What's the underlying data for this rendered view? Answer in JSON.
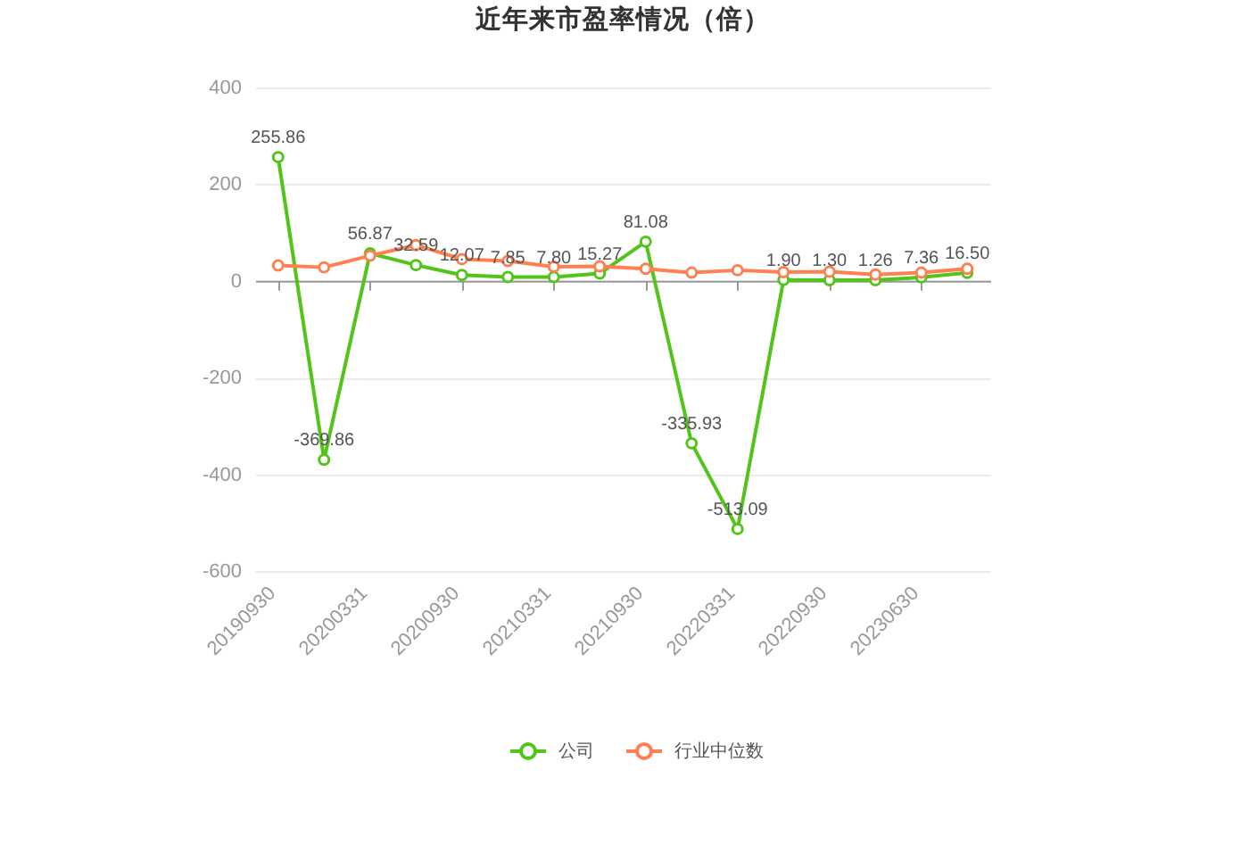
{
  "chart_data": {
    "type": "line",
    "title": "近年来市盈率情况（倍）",
    "categories": [
      "20190930",
      null,
      "20200331",
      null,
      "20200930",
      null,
      "20210331",
      null,
      "20210930",
      null,
      "20220331",
      null,
      "20220930",
      null,
      "20230630",
      null
    ],
    "series": [
      {
        "name": "公司",
        "color": "#52c41a",
        "values": [
          255.86,
          -369.86,
          56.87,
          32.59,
          12.07,
          7.85,
          7.8,
          15.27,
          81.08,
          -335.93,
          -513.09,
          1.9,
          1.3,
          1.26,
          7.36,
          16.5
        ],
        "value_labels": [
          "255.86",
          "-369.86",
          "56.87",
          "32.59",
          "12.07",
          "7.85",
          "7.80",
          "15.27",
          "81.08",
          "-335.93",
          "-513.09",
          "1.90",
          "1.30",
          "1.26",
          "7.36",
          "16.50"
        ]
      },
      {
        "name": "行业中位数",
        "color": "#ff7f50",
        "values": [
          32,
          28,
          52,
          74,
          45,
          41,
          29,
          30,
          25,
          17,
          22,
          18,
          19,
          13,
          17,
          25
        ]
      }
    ],
    "ylim": [
      -600,
      400
    ],
    "yticks": [
      -600,
      -400,
      -200,
      0,
      200,
      400
    ],
    "grid": "y",
    "legend": "bottom",
    "marker": "circle",
    "line_style": "solid"
  }
}
